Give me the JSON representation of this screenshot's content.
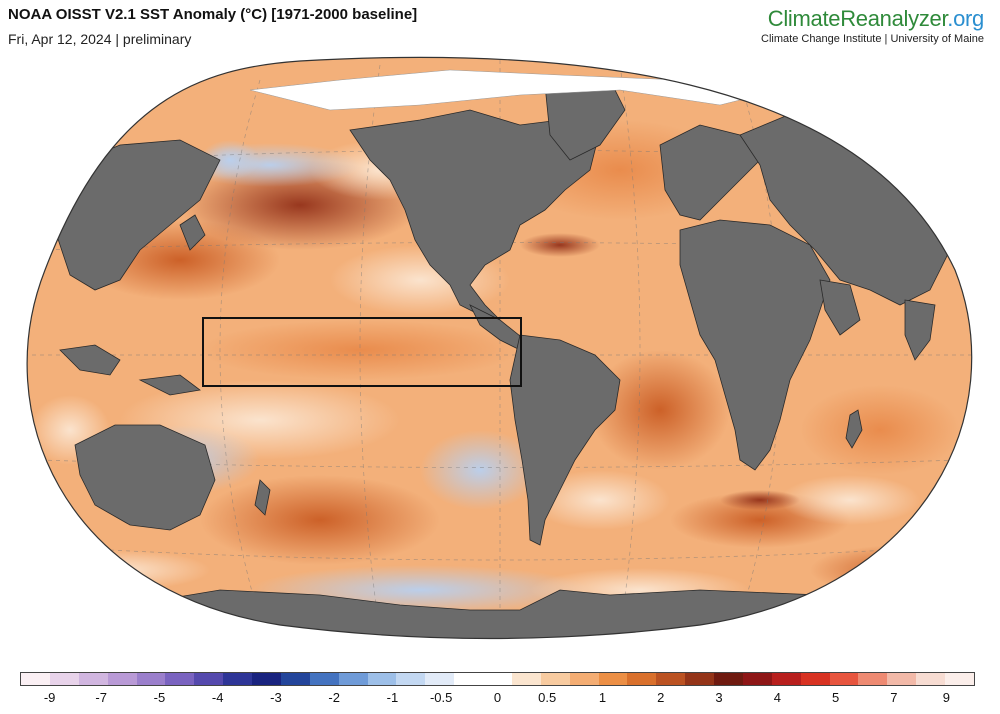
{
  "header": {
    "title": "NOAA OISST V2.1 SST Anomaly (°C) [1971-2000 baseline]",
    "subtitle": "Fri, Apr 12, 2024 | preliminary"
  },
  "brand": {
    "name_part1": "ClimateReanalyzer",
    "name_part2": ".org",
    "subline": "Climate Change Institute | University of Maine"
  },
  "map": {
    "projection": "Winkel Tripel / Robinson-style global",
    "highlight_region": "Niño 3.4 / equatorial Pacific box",
    "colors": {
      "ocean_warm": "#f0a060",
      "land": "#6b6b6b",
      "ice": "#ffffff"
    }
  },
  "colorbar": {
    "colors": [
      "#fbf0f4",
      "#e8d3ea",
      "#d1b6e0",
      "#b99ad6",
      "#9b7fcc",
      "#7a63c0",
      "#5549ad",
      "#2e3597",
      "#19237f",
      "#23459b",
      "#4473c0",
      "#6f9bd8",
      "#9dbfe8",
      "#c3d8f2",
      "#e2ebf8",
      "#ffffff",
      "#ffffff",
      "#fbe5cf",
      "#f8cba0",
      "#f4ad73",
      "#ec8f45",
      "#d9702c",
      "#bb5222",
      "#943418",
      "#6f1a10",
      "#8e1616",
      "#b81f1d",
      "#d83222",
      "#e7553e",
      "#ee8a72",
      "#f2b9a8",
      "#f7dcd2",
      "#fbeeea"
    ],
    "ticks": [
      "-9",
      "-7",
      "-5",
      "-4",
      "-3",
      "-2",
      "-1",
      "-0.5",
      "0",
      "0.5",
      "1",
      "2",
      "3",
      "4",
      "5",
      "7",
      "9"
    ]
  }
}
